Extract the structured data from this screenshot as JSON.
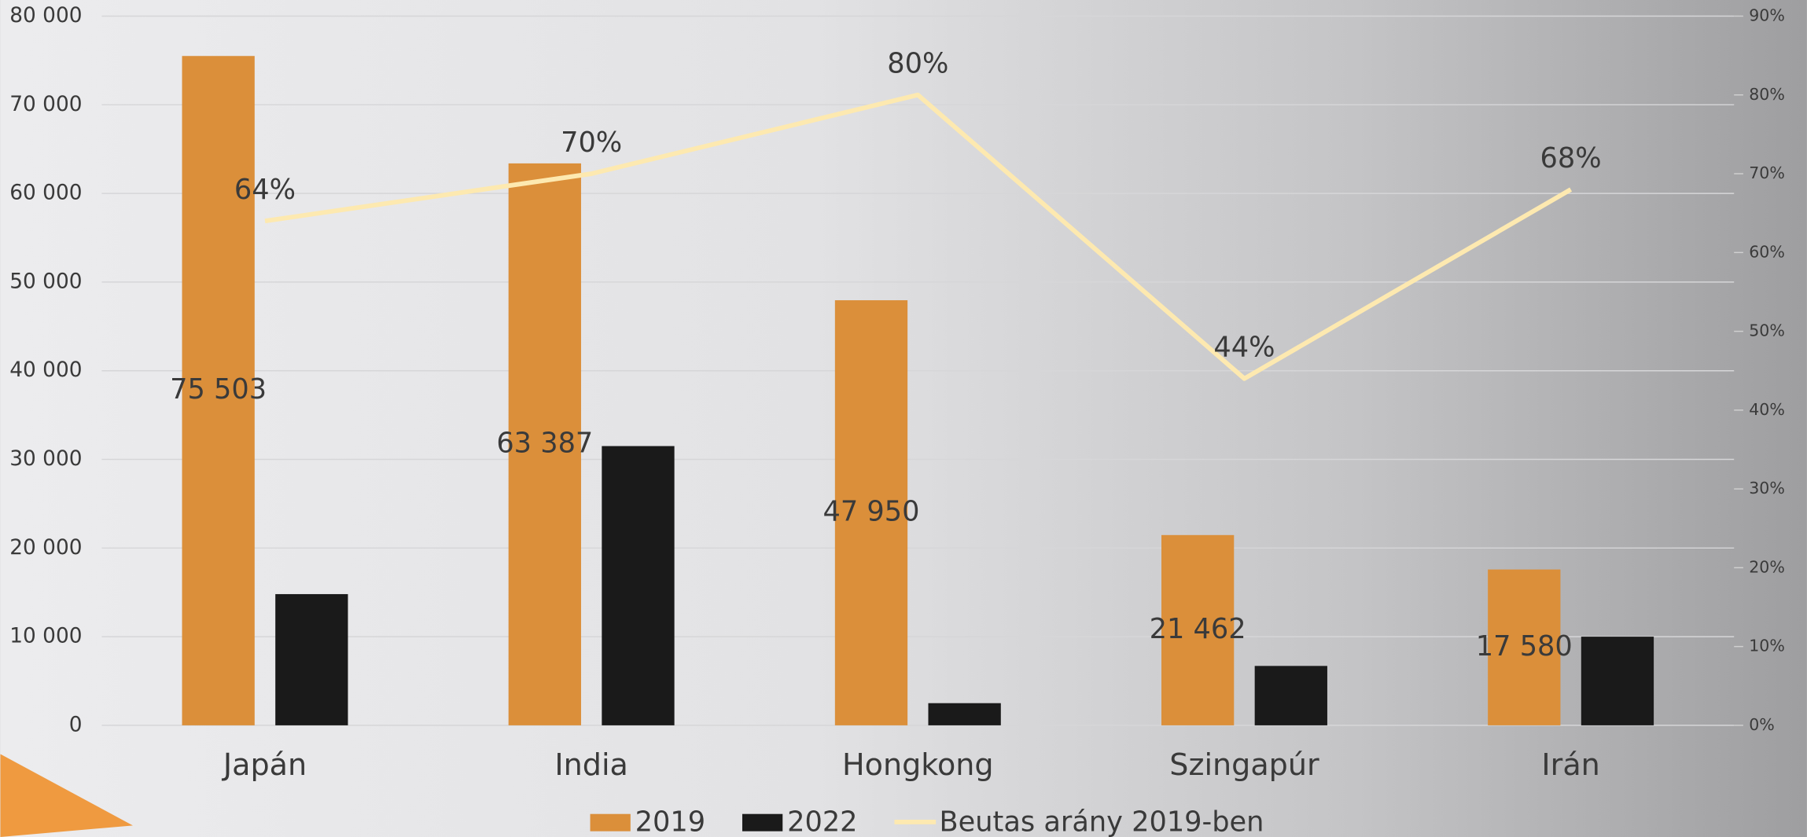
{
  "chart_data": {
    "type": "bar",
    "categories": [
      "Japán",
      "India",
      "Hongkong",
      "Szingapúr",
      "Irán"
    ],
    "series": [
      {
        "name": "2019",
        "color": "#db8f3a",
        "values": [
          75503,
          63387,
          47950,
          21462,
          17580
        ],
        "value_labels": [
          "75 503",
          "63 387",
          "47 950",
          "21 462",
          "17 580"
        ]
      },
      {
        "name": "2022",
        "color": "#1a1a1a",
        "values": [
          14800,
          31500,
          2500,
          6700,
          10000
        ]
      },
      {
        "name": "Beutas arány 2019-ben",
        "color": "#fde9b0",
        "type": "line",
        "axis": "y2",
        "values": [
          64,
          70,
          80,
          44,
          68
        ],
        "value_labels": [
          "64%",
          "70%",
          "80%",
          "44%",
          "68%"
        ]
      }
    ],
    "ylim": [
      0,
      80000
    ],
    "yticks": [
      {
        "value": 0,
        "label": "0"
      },
      {
        "value": 10000,
        "label": "10 000"
      },
      {
        "value": 20000,
        "label": "20 000"
      },
      {
        "value": 30000,
        "label": "30 000"
      },
      {
        "value": 40000,
        "label": "40 000"
      },
      {
        "value": 50000,
        "label": "50 000"
      },
      {
        "value": 60000,
        "label": "60 000"
      },
      {
        "value": 70000,
        "label": "70 000"
      },
      {
        "value": 80000,
        "label": "80 000"
      }
    ],
    "y2lim": [
      0,
      90
    ],
    "y2ticks": [
      {
        "value": 0,
        "label": "0%"
      },
      {
        "value": 10,
        "label": "10%"
      },
      {
        "value": 20,
        "label": "20%"
      },
      {
        "value": 30,
        "label": "30%"
      },
      {
        "value": 40,
        "label": "40%"
      },
      {
        "value": 50,
        "label": "50%"
      },
      {
        "value": 60,
        "label": "60%"
      },
      {
        "value": 70,
        "label": "70%"
      },
      {
        "value": 80,
        "label": "80%"
      },
      {
        "value": 90,
        "label": "90%"
      }
    ],
    "grid": true,
    "legend": "bottom"
  }
}
